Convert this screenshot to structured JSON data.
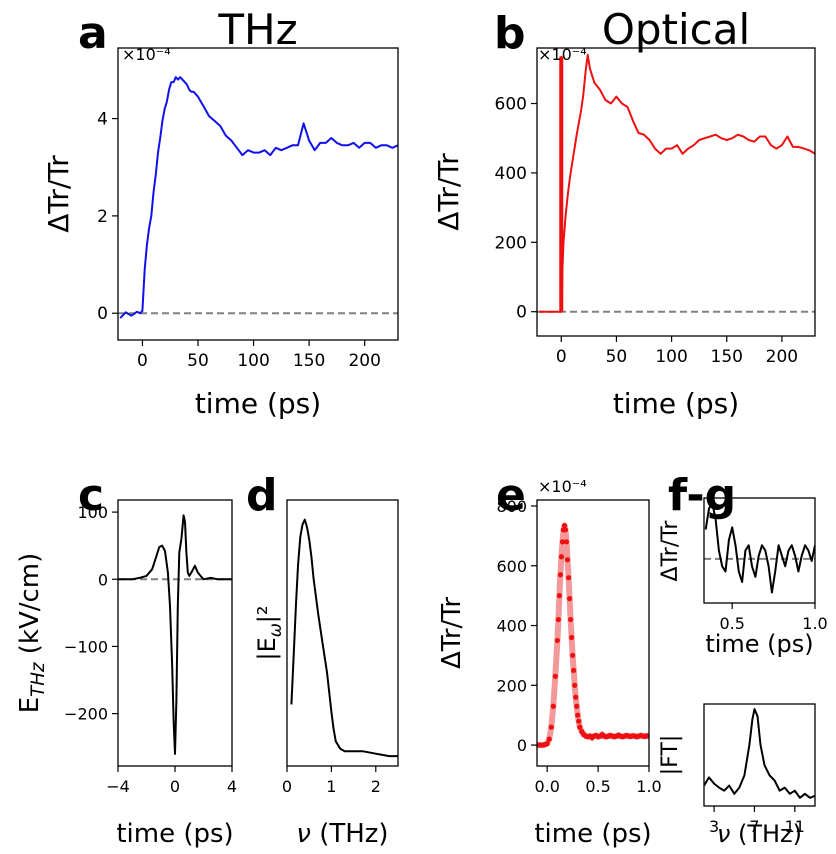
{
  "chart_data": [
    {
      "panel": "a",
      "title": "THz",
      "type": "line",
      "xlabel": "time (ps)",
      "ylabel": "ΔTr/Tr",
      "yexponent": "×10⁻⁴",
      "xlim": [
        -22,
        230
      ],
      "ylim": [
        -0.55,
        5.45
      ],
      "xticks": [
        0,
        50,
        100,
        150,
        200
      ],
      "yticks": [
        0,
        2,
        4
      ],
      "color": "#1010ee",
      "reference_line": 0,
      "series": [
        {
          "x": [
            -20,
            -15,
            -10,
            -5,
            -2,
            0,
            2,
            4,
            6,
            8,
            10,
            12,
            14,
            16,
            18,
            20,
            22,
            24,
            26,
            28,
            30,
            32,
            34,
            36,
            38,
            40,
            42,
            44,
            46,
            48,
            50,
            55,
            60,
            65,
            70,
            75,
            80,
            85,
            90,
            95,
            100,
            105,
            110,
            115,
            120,
            125,
            130,
            135,
            140,
            145,
            150,
            155,
            160,
            165,
            170,
            175,
            180,
            185,
            190,
            195,
            200,
            205,
            210,
            215,
            220,
            225,
            230
          ],
          "y": [
            -0.1,
            0.02,
            -0.05,
            0.03,
            0.0,
            0.05,
            0.9,
            1.4,
            1.75,
            2.0,
            2.5,
            2.85,
            3.3,
            3.6,
            3.95,
            4.2,
            4.35,
            4.6,
            4.75,
            4.75,
            4.85,
            4.8,
            4.85,
            4.8,
            4.75,
            4.7,
            4.6,
            4.55,
            4.55,
            4.5,
            4.45,
            4.25,
            4.05,
            3.95,
            3.85,
            3.65,
            3.55,
            3.4,
            3.25,
            3.35,
            3.3,
            3.3,
            3.35,
            3.25,
            3.4,
            3.35,
            3.4,
            3.45,
            3.45,
            3.9,
            3.55,
            3.35,
            3.5,
            3.5,
            3.6,
            3.5,
            3.45,
            3.45,
            3.5,
            3.4,
            3.5,
            3.5,
            3.4,
            3.45,
            3.45,
            3.4,
            3.45
          ]
        }
      ]
    },
    {
      "panel": "b",
      "title": "Optical",
      "type": "line",
      "xlabel": "time (ps)",
      "ylabel": "ΔTr/Tr",
      "yexponent": "×10⁻⁴",
      "xlim": [
        -22,
        230
      ],
      "ylim": [
        -70,
        760
      ],
      "xticks": [
        0,
        50,
        100,
        150,
        200
      ],
      "yticks": [
        0,
        200,
        400,
        600
      ],
      "color": "#ee1010",
      "reference_line": 0,
      "series": [
        {
          "x": [
            -20,
            -10,
            -2,
            0,
            0,
            0,
            0.5,
            1,
            2,
            4,
            6,
            8,
            10,
            12,
            14,
            16,
            18,
            20,
            22,
            24,
            26,
            28,
            30,
            35,
            40,
            45,
            50,
            55,
            60,
            65,
            70,
            75,
            80,
            85,
            90,
            95,
            100,
            105,
            110,
            115,
            120,
            125,
            130,
            135,
            140,
            145,
            150,
            155,
            160,
            165,
            170,
            175,
            180,
            185,
            190,
            195,
            200,
            205,
            210,
            215,
            220,
            225,
            230
          ],
          "y": [
            0,
            0,
            0,
            0,
            735,
            0,
            10,
            120,
            200,
            280,
            340,
            390,
            430,
            470,
            510,
            545,
            580,
            625,
            690,
            740,
            700,
            680,
            660,
            640,
            610,
            600,
            620,
            600,
            590,
            550,
            515,
            510,
            495,
            470,
            455,
            470,
            470,
            480,
            455,
            470,
            480,
            495,
            500,
            505,
            510,
            500,
            495,
            500,
            510,
            505,
            495,
            490,
            505,
            505,
            480,
            470,
            480,
            505,
            475,
            475,
            470,
            465,
            455
          ]
        }
      ]
    },
    {
      "panel": "c",
      "title": "",
      "type": "line",
      "xlabel": "time (ps)",
      "ylabel": "E_THz (kV/cm)",
      "xlim": [
        -4,
        4
      ],
      "ylim": [
        -278,
        118
      ],
      "xticks": [
        -4,
        0,
        4
      ],
      "yticks": [
        100,
        0,
        -100,
        -200
      ],
      "yticklabels": [
        "100",
        "0",
        "−100",
        "−200"
      ],
      "color": "#000000",
      "reference_line": 0,
      "series": [
        {
          "x": [
            -4,
            -3,
            -2.5,
            -2,
            -1.6,
            -1.3,
            -1.1,
            -0.9,
            -0.7,
            -0.5,
            -0.35,
            -0.2,
            -0.1,
            0,
            0.1,
            0.2,
            0.3,
            0.45,
            0.6,
            0.7,
            0.8,
            0.9,
            1.0,
            1.2,
            1.4,
            1.6,
            1.8,
            2.0,
            2.5,
            3,
            4
          ],
          "y": [
            0,
            0,
            2,
            5,
            15,
            35,
            48,
            50,
            42,
            10,
            -40,
            -130,
            -210,
            -260,
            -180,
            -40,
            40,
            60,
            95,
            85,
            40,
            10,
            5,
            12,
            20,
            10,
            5,
            0,
            2,
            0,
            0
          ]
        }
      ]
    },
    {
      "panel": "d",
      "title": "",
      "type": "line",
      "xlabel": "ν (THz)",
      "ylabel": "|E_ω|²",
      "xlim": [
        0,
        2.5
      ],
      "ylim": [
        0,
        1.08
      ],
      "xticks": [
        0,
        1,
        2
      ],
      "color": "#000000",
      "series": [
        {
          "x": [
            0.1,
            0.15,
            0.2,
            0.25,
            0.3,
            0.35,
            0.4,
            0.45,
            0.5,
            0.55,
            0.6,
            0.7,
            0.8,
            0.9,
            1.0,
            1.05,
            1.1,
            1.2,
            1.3,
            1.4,
            1.5,
            1.7,
            2.0,
            2.3,
            2.5
          ],
          "y": [
            0.25,
            0.45,
            0.65,
            0.82,
            0.93,
            0.98,
            1.0,
            0.97,
            0.92,
            0.85,
            0.76,
            0.62,
            0.5,
            0.38,
            0.22,
            0.15,
            0.1,
            0.07,
            0.06,
            0.06,
            0.06,
            0.06,
            0.05,
            0.04,
            0.04
          ]
        }
      ]
    },
    {
      "panel": "e",
      "title": "",
      "type": "scatter",
      "xlabel": "time (ps)",
      "ylabel": "ΔTr/Tr",
      "yexponent": "×10⁻⁴",
      "xlim": [
        -0.1,
        1.0
      ],
      "ylim": [
        -70,
        820
      ],
      "xticks": [
        0.0,
        0.5,
        1.0
      ],
      "xticklabels": [
        "0.0",
        "0.5",
        "1.0"
      ],
      "yticks": [
        0,
        200,
        400,
        600,
        800
      ],
      "color": "#ee1010",
      "fit_color": "#f08080",
      "series": [
        {
          "x": [
            -0.1,
            -0.08,
            -0.06,
            -0.04,
            -0.02,
            0.0,
            0.02,
            0.04,
            0.06,
            0.08,
            0.1,
            0.11,
            0.12,
            0.13,
            0.14,
            0.15,
            0.16,
            0.17,
            0.18,
            0.19,
            0.2,
            0.21,
            0.22,
            0.23,
            0.24,
            0.25,
            0.26,
            0.27,
            0.28,
            0.29,
            0.3,
            0.31,
            0.32,
            0.34,
            0.36,
            0.38,
            0.4,
            0.42,
            0.44,
            0.46,
            0.48,
            0.5,
            0.52,
            0.54,
            0.56,
            0.58,
            0.6,
            0.62,
            0.64,
            0.66,
            0.68,
            0.7,
            0.72,
            0.74,
            0.76,
            0.78,
            0.8,
            0.82,
            0.84,
            0.86,
            0.88,
            0.9,
            0.92,
            0.94,
            0.96,
            0.98,
            1.0
          ],
          "y": [
            0,
            0,
            0,
            0,
            2,
            5,
            20,
            60,
            130,
            230,
            350,
            420,
            500,
            570,
            630,
            680,
            720,
            735,
            720,
            680,
            620,
            560,
            490,
            420,
            360,
            300,
            250,
            200,
            160,
            130,
            100,
            80,
            60,
            45,
            35,
            30,
            28,
            30,
            25,
            30,
            32,
            28,
            30,
            35,
            30,
            28,
            30,
            32,
            30,
            28,
            30,
            33,
            30,
            28,
            30,
            32,
            30,
            29,
            31,
            30,
            28,
            30,
            32,
            30,
            29,
            31,
            30
          ]
        }
      ]
    },
    {
      "panel": "f",
      "title": "",
      "type": "line",
      "xlabel": "time (ps)",
      "ylabel": "ΔTr/Tr",
      "xlim": [
        0.33,
        1.0
      ],
      "ylim": [
        0,
        1
      ],
      "xticks": [
        0.5,
        1.0
      ],
      "xticklabels": [
        "0.5",
        "1.0"
      ],
      "color": "#000000",
      "reference_line": 0.42,
      "series": [
        {
          "x": [
            0.34,
            0.36,
            0.38,
            0.4,
            0.42,
            0.44,
            0.46,
            0.48,
            0.5,
            0.52,
            0.54,
            0.56,
            0.58,
            0.6,
            0.62,
            0.64,
            0.66,
            0.68,
            0.7,
            0.72,
            0.74,
            0.76,
            0.78,
            0.8,
            0.82,
            0.84,
            0.86,
            0.88,
            0.9,
            0.92,
            0.94,
            0.96,
            0.98,
            1.0
          ],
          "y": [
            0.7,
            0.9,
            0.95,
            0.8,
            0.5,
            0.35,
            0.3,
            0.6,
            0.72,
            0.55,
            0.3,
            0.2,
            0.5,
            0.55,
            0.35,
            0.25,
            0.45,
            0.55,
            0.5,
            0.35,
            0.1,
            0.3,
            0.55,
            0.45,
            0.35,
            0.5,
            0.55,
            0.45,
            0.3,
            0.45,
            0.55,
            0.5,
            0.4,
            0.55
          ]
        }
      ]
    },
    {
      "panel": "g",
      "title": "",
      "type": "line",
      "xlabel": "ν (THz)",
      "ylabel": "|FT|",
      "xlim": [
        2,
        13
      ],
      "ylim": [
        0,
        1
      ],
      "xticks": [
        3,
        7,
        11
      ],
      "color": "#000000",
      "series": [
        {
          "x": [
            2,
            2.5,
            3,
            3.5,
            4,
            4.5,
            5,
            5.5,
            6,
            6.5,
            6.8,
            7,
            7.3,
            7.6,
            8,
            8.5,
            9,
            9.5,
            10,
            10.5,
            11,
            11.5,
            12,
            12.5,
            13
          ],
          "y": [
            0.2,
            0.28,
            0.22,
            0.18,
            0.15,
            0.2,
            0.12,
            0.18,
            0.3,
            0.6,
            0.85,
            0.95,
            0.88,
            0.6,
            0.4,
            0.3,
            0.25,
            0.15,
            0.18,
            0.12,
            0.15,
            0.08,
            0.12,
            0.08,
            0.1
          ]
        }
      ]
    }
  ],
  "panel_labels": {
    "a": "a",
    "b": "b",
    "c": "c",
    "d": "d",
    "e": "e",
    "fg": "f-g"
  }
}
